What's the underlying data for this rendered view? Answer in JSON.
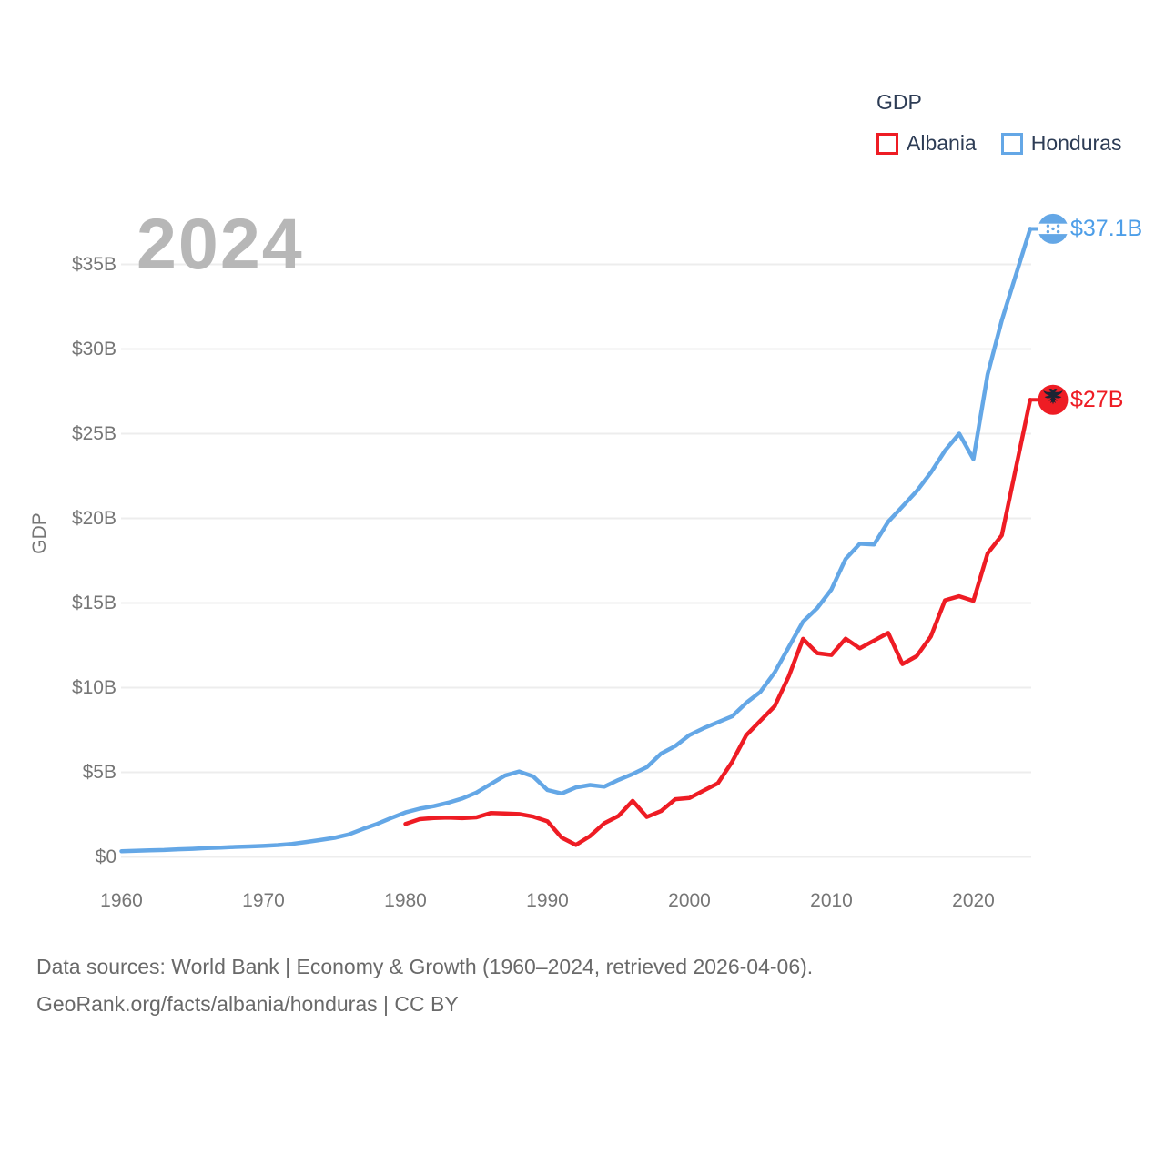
{
  "legend": {
    "title": "GDP",
    "items": [
      {
        "label": "Albania",
        "color": "#ee1c24"
      },
      {
        "label": "Honduras",
        "color": "#64a7e6"
      }
    ]
  },
  "watermark": "2024",
  "y_axis": {
    "title": "GDP",
    "ticks": [
      "$0",
      "$5B",
      "$10B",
      "$15B",
      "$20B",
      "$25B",
      "$30B",
      "$35B"
    ],
    "tick_step_billions": 5
  },
  "x_axis": {
    "ticks": [
      "1960",
      "1970",
      "1980",
      "1990",
      "2000",
      "2010",
      "2020"
    ]
  },
  "end_labels": [
    {
      "series": "Honduras",
      "value": "$37.1B",
      "color": "#4d9ee8"
    },
    {
      "series": "Albania",
      "value": "$27B",
      "color": "#ee1c24"
    }
  ],
  "footer": {
    "line1": "Data sources: World Bank | Economy & Growth (1960–2024, retrieved 2026-04-06).",
    "line2": "GeoRank.org/facts/albania/honduras | CC BY"
  },
  "colors": {
    "albania_red": "#ee1c24",
    "honduras_blue": "#64a7e6",
    "gridline": "#ededed",
    "tick_text": "#767676",
    "legend_text": "#2d3c55",
    "watermark": "#b7b7b7",
    "footer_text": "#696969",
    "eagle_dark": "#1b2433"
  },
  "chart_data": {
    "type": "line",
    "title": "GDP",
    "xlabel": "",
    "ylabel": "GDP",
    "units": "billions of current USD",
    "xlim": [
      1960,
      2024
    ],
    "ylim": [
      0,
      37.5
    ],
    "grid": "horizontal",
    "legend_position": "top-right",
    "series": [
      {
        "name": "Honduras",
        "color": "#64a7e6",
        "end_label": "$37.1B",
        "x": [
          1960,
          1961,
          1962,
          1963,
          1964,
          1965,
          1966,
          1967,
          1968,
          1969,
          1970,
          1971,
          1972,
          1973,
          1974,
          1975,
          1976,
          1977,
          1978,
          1979,
          1980,
          1981,
          1982,
          1983,
          1984,
          1985,
          1986,
          1987,
          1988,
          1989,
          1990,
          1991,
          1992,
          1993,
          1994,
          1995,
          1996,
          1997,
          1998,
          1999,
          2000,
          2001,
          2002,
          2003,
          2004,
          2005,
          2006,
          2007,
          2008,
          2009,
          2010,
          2011,
          2012,
          2013,
          2014,
          2015,
          2016,
          2017,
          2018,
          2019,
          2020,
          2021,
          2022,
          2023,
          2024
        ],
        "values": [
          0.34,
          0.36,
          0.39,
          0.41,
          0.45,
          0.48,
          0.52,
          0.55,
          0.59,
          0.62,
          0.65,
          0.7,
          0.77,
          0.88,
          1.0,
          1.13,
          1.33,
          1.65,
          1.95,
          2.3,
          2.63,
          2.85,
          3.0,
          3.2,
          3.45,
          3.8,
          4.3,
          4.8,
          5.05,
          4.75,
          3.95,
          3.75,
          4.1,
          4.25,
          4.15,
          4.55,
          4.9,
          5.3,
          6.1,
          6.55,
          7.2,
          7.6,
          7.95,
          8.3,
          9.1,
          9.75,
          10.9,
          12.4,
          13.9,
          14.7,
          15.8,
          17.6,
          18.5,
          18.45,
          19.8,
          20.7,
          21.6,
          22.7,
          24.0,
          25.0,
          23.5,
          28.5,
          31.7,
          34.4,
          37.1
        ]
      },
      {
        "name": "Albania",
        "color": "#ee1c24",
        "end_label": "$27B",
        "x": [
          1980,
          1981,
          1982,
          1983,
          1984,
          1985,
          1986,
          1987,
          1988,
          1989,
          1990,
          1991,
          1992,
          1993,
          1994,
          1995,
          1996,
          1997,
          1998,
          1999,
          2000,
          2001,
          2002,
          2003,
          2004,
          2005,
          2006,
          2007,
          2008,
          2009,
          2010,
          2011,
          2012,
          2013,
          2014,
          2015,
          2016,
          2017,
          2018,
          2019,
          2020,
          2021,
          2022,
          2023,
          2024
        ],
        "values": [
          1.95,
          2.23,
          2.3,
          2.32,
          2.29,
          2.34,
          2.59,
          2.57,
          2.53,
          2.38,
          2.1,
          1.14,
          0.71,
          1.23,
          1.99,
          2.42,
          3.31,
          2.36,
          2.71,
          3.41,
          3.48,
          3.92,
          4.35,
          5.61,
          7.19,
          8.05,
          8.9,
          10.68,
          12.88,
          12.04,
          11.93,
          12.89,
          12.32,
          12.78,
          13.23,
          11.39,
          11.86,
          13.02,
          15.16,
          15.4,
          15.13,
          17.93,
          19.0,
          23.0,
          27.0
        ]
      }
    ]
  }
}
